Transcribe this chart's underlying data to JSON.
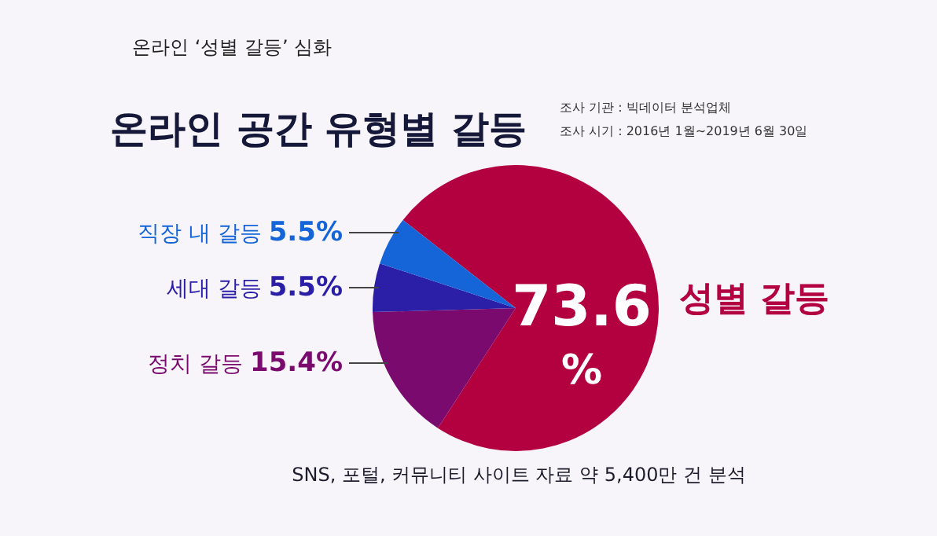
{
  "chart_data": {
    "type": "pie",
    "title": "온라인 공간 유형별 갈등",
    "subtitle": "온라인 ‘성별 갈등’ 심화",
    "categories": [
      "성별 갈등",
      "정치 갈등",
      "세대 갈등",
      "직장 내 갈등"
    ],
    "values": [
      73.6,
      15.4,
      5.5,
      5.5
    ],
    "colors": [
      "#b3003f",
      "#7a0a6e",
      "#2b1fa8",
      "#1565d8"
    ],
    "value_labels": [
      "73.6%",
      "15.4%",
      "5.5%",
      "5.5%"
    ],
    "annotations": [
      "조사 기관 : 빅데이터 분석업체",
      "조사 시기 : 2016년 1월~2019년 6월 30일",
      "SNS, 포털, 커뮤니티 사이트 자료 약 5,400만 건 분석"
    ]
  }
}
